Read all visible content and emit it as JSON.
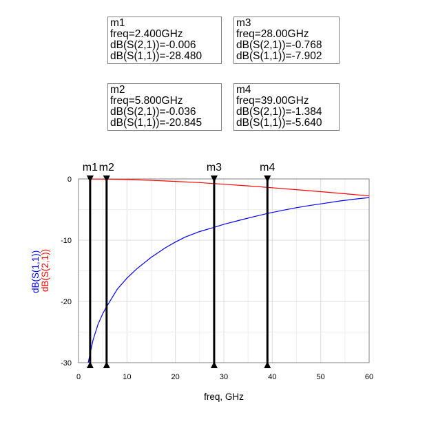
{
  "marker_boxes": [
    {
      "name": "m1",
      "freq": "freq=2.400GHz",
      "s21": "dB(S(2,1))=-0.006",
      "s11": "dB(S(1,1))=-28.480"
    },
    {
      "name": "m3",
      "freq": "freq=28.00GHz",
      "s21": "dB(S(2,1))=-0.768",
      "s11": "dB(S(1,1))=-7.902"
    },
    {
      "name": "m2",
      "freq": "freq=5.800GHz",
      "s21": "dB(S(2,1))=-0.036",
      "s11": "dB(S(1,1))=-20.845"
    },
    {
      "name": "m4",
      "freq": "freq=39.00GHz",
      "s21": "dB(S(2,1))=-1.384",
      "s11": "dB(S(1,1))=-5.640"
    }
  ],
  "chart_data": {
    "type": "line",
    "xlabel": "freq, GHz",
    "ylabel_parts": [
      "dB(S(1,1))",
      "dB(S(2,1))"
    ],
    "xlim": [
      0,
      60
    ],
    "ylim": [
      -30,
      0
    ],
    "xticks": [
      "0",
      "10",
      "20",
      "30",
      "40",
      "50",
      "60"
    ],
    "yticks": [
      "0",
      "-10",
      "-20",
      "-30"
    ],
    "grid": true,
    "series": [
      {
        "name": "dB(S(1,1))",
        "color": "#0000ff",
        "x": [
          2,
          2.4,
          3,
          4,
          5,
          5.8,
          7,
          8,
          10,
          12,
          15,
          18,
          20,
          22,
          25,
          28,
          30,
          33,
          36,
          39,
          42,
          45,
          48,
          51,
          54,
          57,
          60
        ],
        "y": [
          -30.5,
          -28.48,
          -26.3,
          -23.8,
          -22.0,
          -20.845,
          -19.3,
          -18.0,
          -16.2,
          -14.7,
          -12.8,
          -11.2,
          -10.3,
          -9.5,
          -8.6,
          -7.902,
          -7.4,
          -6.8,
          -6.2,
          -5.64,
          -5.15,
          -4.7,
          -4.3,
          -3.95,
          -3.6,
          -3.3,
          -3.05
        ]
      },
      {
        "name": "dB(S(2,1))",
        "color": "#ff0000",
        "x": [
          2,
          2.4,
          5.8,
          10,
          15,
          20,
          25,
          28,
          30,
          35,
          39,
          45,
          50,
          55,
          60
        ],
        "y": [
          -0.004,
          -0.006,
          -0.036,
          -0.1,
          -0.23,
          -0.4,
          -0.6,
          -0.768,
          -0.87,
          -1.13,
          -1.384,
          -1.75,
          -2.08,
          -2.42,
          -2.78
        ]
      }
    ],
    "markers": [
      {
        "label": "m1",
        "x": 2.4
      },
      {
        "label": "m2",
        "x": 5.8
      },
      {
        "label": "m3",
        "x": 28
      },
      {
        "label": "m4",
        "x": 39
      }
    ]
  }
}
